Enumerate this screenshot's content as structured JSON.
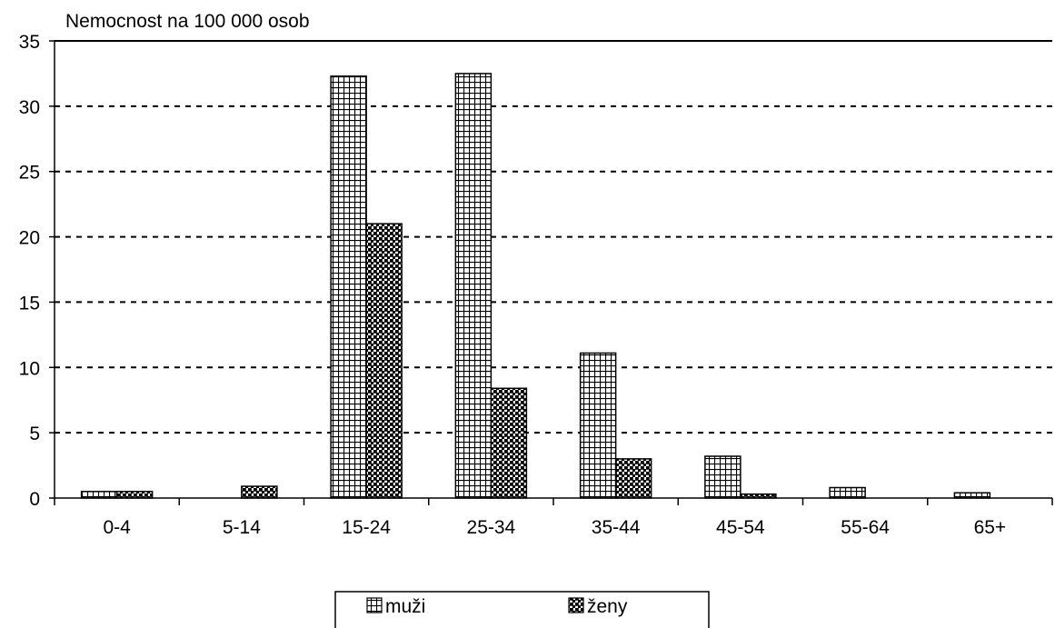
{
  "chart_data": {
    "type": "bar",
    "title": "Nemocnost na 100 000 osob",
    "xlabel": "",
    "ylabel": "",
    "categories": [
      "0-4",
      "5-14",
      "15-24",
      "25-34",
      "35-44",
      "45-54",
      "55-64",
      "65+"
    ],
    "series": [
      {
        "name": "muži",
        "values": [
          0.5,
          0,
          32.3,
          32.5,
          11.1,
          3.2,
          0.8,
          0.4
        ],
        "pattern": "grid"
      },
      {
        "name": "ženy",
        "values": [
          0.5,
          0.9,
          21.0,
          8.4,
          3.0,
          0.3,
          0,
          0
        ],
        "pattern": "checker"
      }
    ],
    "ylim": [
      0,
      35
    ],
    "yticks": [
      0,
      5,
      10,
      15,
      20,
      25,
      30,
      35
    ],
    "grid": true,
    "grid_style": "dashed",
    "legend_position": "bottom"
  }
}
